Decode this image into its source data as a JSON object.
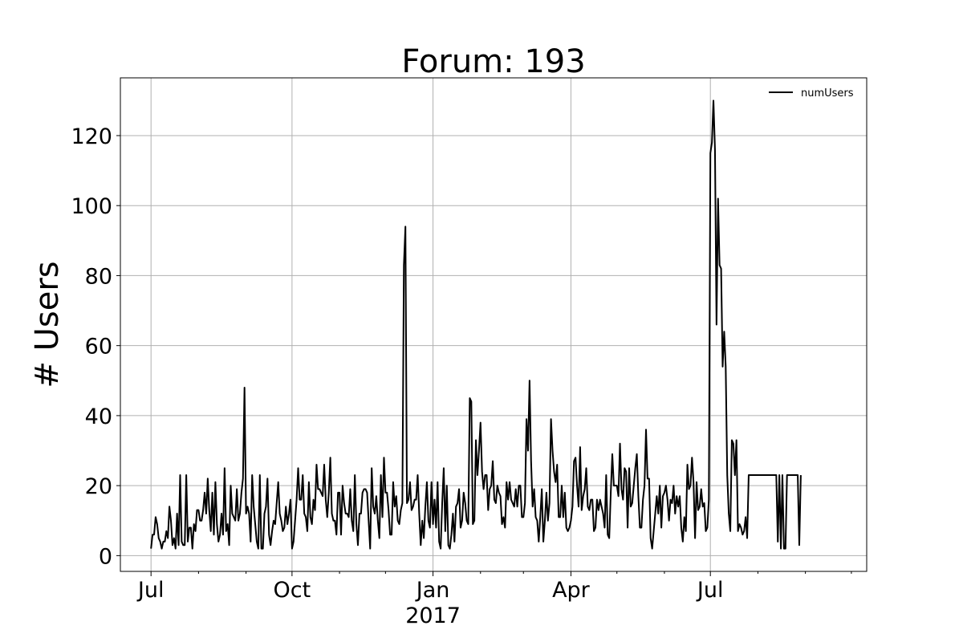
{
  "chart_data": {
    "type": "line",
    "title": "Forum: 193",
    "xlabel": "",
    "ylabel": "# Users",
    "xlim": [
      "2016-06-11",
      "2017-10-11"
    ],
    "ylim": [
      -4.5,
      136.5
    ],
    "grid": true,
    "legend": {
      "position": "top-right",
      "entries": [
        "numUsers"
      ]
    },
    "x_ticks": [
      {
        "date": "2016-07-01",
        "label": "Jul",
        "sublabel": ""
      },
      {
        "date": "2016-10-01",
        "label": "Oct",
        "sublabel": ""
      },
      {
        "date": "2017-01-01",
        "label": "Jan",
        "sublabel": "2017"
      },
      {
        "date": "2017-04-01",
        "label": "Apr",
        "sublabel": ""
      },
      {
        "date": "2017-07-01",
        "label": "Jul",
        "sublabel": ""
      }
    ],
    "x_minor_ticks": [
      "2016-08-01",
      "2016-09-01",
      "2016-11-01",
      "2016-12-01",
      "2017-02-01",
      "2017-03-01",
      "2017-05-01",
      "2017-06-01",
      "2017-08-01",
      "2017-09-01",
      "2017-10-01"
    ],
    "y_ticks": [
      0,
      20,
      40,
      60,
      80,
      100,
      120
    ],
    "series": [
      {
        "name": "numUsers",
        "color": "#000000",
        "start_date": "2016-07-01",
        "interval_days": 1,
        "values": [
          2,
          6,
          6,
          11,
          9,
          5,
          4,
          2,
          4,
          4,
          7,
          5,
          14,
          10,
          3,
          5,
          2,
          12,
          3,
          23,
          4,
          3,
          3,
          23,
          4,
          8,
          8,
          2,
          9,
          7,
          13,
          13,
          10,
          10,
          13,
          18,
          12,
          22,
          13,
          7,
          18,
          6,
          21,
          9,
          4,
          6,
          12,
          6,
          25,
          7,
          9,
          3,
          20,
          12,
          11,
          10,
          19,
          10,
          12,
          18,
          22,
          48,
          12,
          14,
          12,
          4,
          23,
          14,
          9,
          4,
          2,
          23,
          2,
          2,
          12,
          14,
          22,
          6,
          3,
          7,
          10,
          9,
          15,
          21,
          12,
          10,
          7,
          8,
          14,
          9,
          12,
          16,
          2,
          4,
          10,
          16,
          25,
          16,
          16,
          23,
          12,
          11,
          7,
          21,
          11,
          9,
          16,
          13,
          26,
          19,
          19,
          18,
          17,
          26,
          16,
          11,
          18,
          28,
          12,
          10,
          10,
          6,
          18,
          18,
          6,
          20,
          15,
          12,
          12,
          11,
          19,
          10,
          7,
          23,
          9,
          3,
          12,
          12,
          18,
          19,
          19,
          18,
          10,
          2,
          25,
          14,
          12,
          17,
          10,
          5,
          23,
          11,
          28,
          18,
          18,
          13,
          6,
          6,
          21,
          14,
          17,
          10,
          9,
          13,
          15,
          83,
          94,
          15,
          16,
          21,
          13,
          14,
          16,
          16,
          23,
          12,
          3,
          10,
          5,
          14,
          21,
          10,
          8,
          21,
          9,
          16,
          8,
          21,
          4,
          2,
          15,
          25,
          7,
          20,
          3,
          2,
          6,
          12,
          4,
          14,
          15,
          19,
          8,
          10,
          18,
          15,
          10,
          9,
          45,
          44,
          9,
          10,
          33,
          23,
          30,
          38,
          24,
          19,
          23,
          23,
          13,
          19,
          20,
          27,
          16,
          15,
          20,
          18,
          17,
          9,
          11,
          8,
          21,
          16,
          21,
          16,
          15,
          14,
          19,
          14,
          20,
          20,
          11,
          11,
          15,
          39,
          30,
          50,
          27,
          14,
          19,
          11,
          10,
          4,
          11,
          19,
          4,
          10,
          18,
          10,
          15,
          39,
          30,
          24,
          21,
          26,
          11,
          11,
          20,
          11,
          18,
          8,
          7,
          8,
          10,
          14,
          27,
          28,
          20,
          14,
          31,
          13,
          17,
          19,
          25,
          14,
          13,
          16,
          16,
          7,
          8,
          16,
          13,
          16,
          14,
          12,
          8,
          23,
          6,
          5,
          18,
          29,
          20,
          20,
          20,
          17,
          32,
          19,
          16,
          25,
          24,
          8,
          25,
          14,
          15,
          20,
          25,
          29,
          17,
          8,
          8,
          16,
          20,
          36,
          22,
          22,
          5,
          2,
          7,
          12,
          17,
          12,
          20,
          8,
          17,
          18,
          20,
          16,
          10,
          16,
          15,
          20,
          12,
          17,
          14,
          17,
          8,
          4,
          11,
          7,
          26,
          19,
          20,
          28,
          21,
          5,
          21,
          13,
          14,
          19,
          14,
          15,
          7,
          8,
          16,
          115,
          118,
          130,
          116,
          66,
          102,
          83,
          82,
          54,
          64,
          54,
          23,
          12,
          7,
          33,
          32,
          23,
          33,
          7,
          9,
          8,
          6,
          7,
          11,
          5,
          23,
          23,
          23,
          23,
          23,
          23,
          23,
          23,
          23,
          23,
          23,
          23,
          23,
          23,
          23,
          23,
          23,
          23,
          23,
          4,
          23,
          2,
          23,
          2,
          2,
          23,
          23,
          23,
          23,
          23,
          23,
          23,
          23,
          3,
          23
        ]
      }
    ]
  }
}
